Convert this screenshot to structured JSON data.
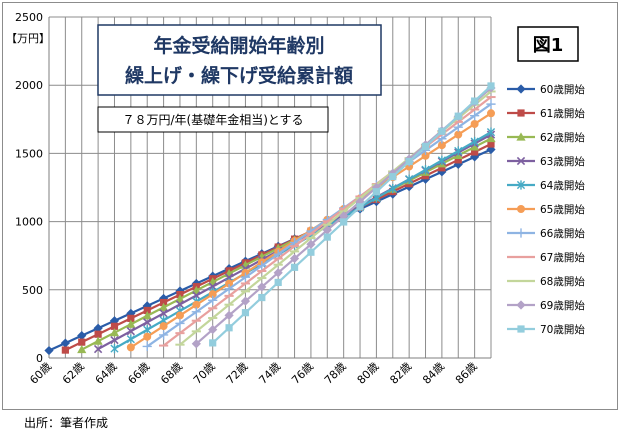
{
  "source_note": "出所：筆者作成",
  "chart_data": {
    "type": "line",
    "title_line1": "年金受給開始年齢別",
    "title_line2": "繰上げ・繰下げ受給累計額",
    "subtitle": "７８万円/年(基礎年金相当)とする",
    "figure_label": "図1",
    "ylabel": "【万円】",
    "xlabel": "",
    "ylim": [
      0,
      2500
    ],
    "yticks": [
      "0",
      "500",
      "1000",
      "1500",
      "2000",
      "2500"
    ],
    "x": [
      60,
      61,
      62,
      63,
      64,
      65,
      66,
      67,
      68,
      69,
      70,
      71,
      72,
      73,
      74,
      75,
      76,
      77,
      78,
      79,
      80,
      81,
      82,
      83,
      84,
      85,
      86,
      87
    ],
    "xticks": [
      "60歳",
      "62歳",
      "64歳",
      "66歳",
      "68歳",
      "70歳",
      "72歳",
      "74歳",
      "76歳",
      "78歳",
      "80歳",
      "82歳",
      "84歳",
      "86歳"
    ],
    "grid": true,
    "legend_position": "right",
    "series": [
      {
        "name": "60歳開始",
        "start": 60,
        "annual": 54.6,
        "color": "#2a5ca8",
        "marker": "diamond",
        "values": [
          54.6,
          109.2,
          163.8,
          218.4,
          273.0,
          327.6,
          382.2,
          436.8,
          491.4,
          546.0,
          600.6,
          655.2,
          709.8,
          764.4,
          819.0,
          873.6,
          928.2,
          982.8,
          1037.4,
          1092.0,
          1146.6,
          1201.2,
          1255.8,
          1310.4,
          1365.0,
          1419.6,
          1474.2,
          1528.8
        ]
      },
      {
        "name": "61歳開始",
        "start": 61,
        "annual": 58.1,
        "color": "#be4b48",
        "marker": "square",
        "values": [
          null,
          58.1,
          116.2,
          174.3,
          232.4,
          290.5,
          348.6,
          406.7,
          464.8,
          522.9,
          581.0,
          639.1,
          697.2,
          755.3,
          813.4,
          871.5,
          929.6,
          987.7,
          1045.8,
          1103.9,
          1162.0,
          1220.1,
          1278.2,
          1336.3,
          1394.4,
          1452.5,
          1510.6,
          1568.7
        ]
      },
      {
        "name": "62歳開始",
        "start": 62,
        "annual": 61.9,
        "color": "#98b954",
        "marker": "triangle",
        "values": [
          null,
          null,
          61.9,
          123.8,
          185.7,
          247.6,
          309.5,
          371.4,
          433.3,
          495.2,
          557.1,
          619.0,
          680.9,
          742.8,
          804.7,
          866.6,
          928.5,
          990.4,
          1052.3,
          1114.2,
          1176.1,
          1238.0,
          1299.9,
          1361.8,
          1423.7,
          1485.6,
          1547.5,
          1609.4
        ]
      },
      {
        "name": "63歳開始",
        "start": 63,
        "annual": 65.5,
        "color": "#7d60a0",
        "marker": "x",
        "values": [
          null,
          null,
          null,
          65.5,
          131.0,
          196.5,
          262.0,
          327.5,
          393.0,
          458.5,
          524.0,
          589.5,
          655.0,
          720.5,
          786.0,
          851.5,
          917.0,
          982.5,
          1048.0,
          1113.5,
          1179.0,
          1244.5,
          1310.0,
          1375.5,
          1441.0,
          1506.5,
          1572.0,
          1637.5
        ]
      },
      {
        "name": "64歳開始",
        "start": 64,
        "annual": 69.0,
        "color": "#46aac5",
        "marker": "star",
        "values": [
          null,
          null,
          null,
          null,
          69.0,
          138.0,
          207.0,
          276.0,
          345.0,
          414.0,
          483.0,
          552.0,
          621.0,
          690.0,
          759.0,
          828.0,
          897.0,
          966.0,
          1035.0,
          1104.0,
          1173.0,
          1242.0,
          1311.0,
          1380.0,
          1449.0,
          1518.0,
          1587.0,
          1656.0
        ]
      },
      {
        "name": "65歳開始",
        "start": 65,
        "annual": 78.0,
        "color": "#f59d56",
        "marker": "circle",
        "values": [
          null,
          null,
          null,
          null,
          null,
          78.0,
          156.0,
          234.0,
          312.0,
          390.0,
          468.0,
          546.0,
          624.0,
          702.0,
          780.0,
          858.0,
          936.0,
          1014.0,
          1092.0,
          1170.0,
          1248.0,
          1326.0,
          1404.0,
          1482.0,
          1560.0,
          1638.0,
          1716.0,
          1794.0
        ]
      },
      {
        "name": "66歳開始",
        "start": 66,
        "annual": 84.6,
        "color": "#8eb4e3",
        "marker": "plus",
        "values": [
          null,
          null,
          null,
          null,
          null,
          null,
          84.6,
          169.2,
          253.8,
          338.4,
          423.0,
          507.6,
          592.2,
          676.8,
          761.4,
          846.0,
          930.6,
          1015.2,
          1099.8,
          1184.4,
          1269.0,
          1353.6,
          1438.2,
          1522.8,
          1607.4,
          1692.0,
          1776.6,
          1861.2
        ]
      },
      {
        "name": "67歳開始",
        "start": 67,
        "annual": 91.1,
        "color": "#e8a09e",
        "marker": "dash",
        "values": [
          null,
          null,
          null,
          null,
          null,
          null,
          null,
          91.1,
          182.2,
          273.3,
          364.4,
          455.5,
          546.6,
          637.7,
          728.8,
          819.9,
          911.0,
          1002.1,
          1093.2,
          1184.3,
          1275.4,
          1366.5,
          1457.6,
          1548.7,
          1639.8,
          1730.9,
          1822.0,
          1913.1
        ]
      },
      {
        "name": "68歳開始",
        "start": 68,
        "annual": 97.7,
        "color": "#c3d69b",
        "marker": "dash",
        "values": [
          null,
          null,
          null,
          null,
          null,
          null,
          null,
          null,
          97.7,
          195.4,
          293.1,
          390.8,
          488.5,
          586.2,
          683.9,
          781.6,
          879.3,
          977.0,
          1074.7,
          1172.4,
          1270.1,
          1367.8,
          1465.5,
          1563.2,
          1660.9,
          1758.6,
          1856.3,
          1954.0
        ]
      },
      {
        "name": "69歳開始",
        "start": 69,
        "annual": 104.2,
        "color": "#b3a2c7",
        "marker": "diamond",
        "values": [
          null,
          null,
          null,
          null,
          null,
          null,
          null,
          null,
          null,
          104.2,
          208.4,
          312.6,
          416.8,
          521.0,
          625.2,
          729.4,
          833.6,
          937.8,
          1042.0,
          1146.2,
          1250.4,
          1354.6,
          1458.8,
          1563.0,
          1667.2,
          1771.4,
          1875.6,
          1979.8
        ]
      },
      {
        "name": "70歳開始",
        "start": 70,
        "annual": 110.8,
        "color": "#93cddd",
        "marker": "square",
        "values": [
          null,
          null,
          null,
          null,
          null,
          null,
          null,
          null,
          null,
          null,
          110.8,
          221.6,
          332.4,
          443.2,
          554.0,
          664.8,
          775.6,
          886.4,
          997.2,
          1108.0,
          1218.8,
          1329.6,
          1440.4,
          1551.2,
          1662.0,
          1772.8,
          1883.6,
          1994.4
        ]
      }
    ]
  }
}
